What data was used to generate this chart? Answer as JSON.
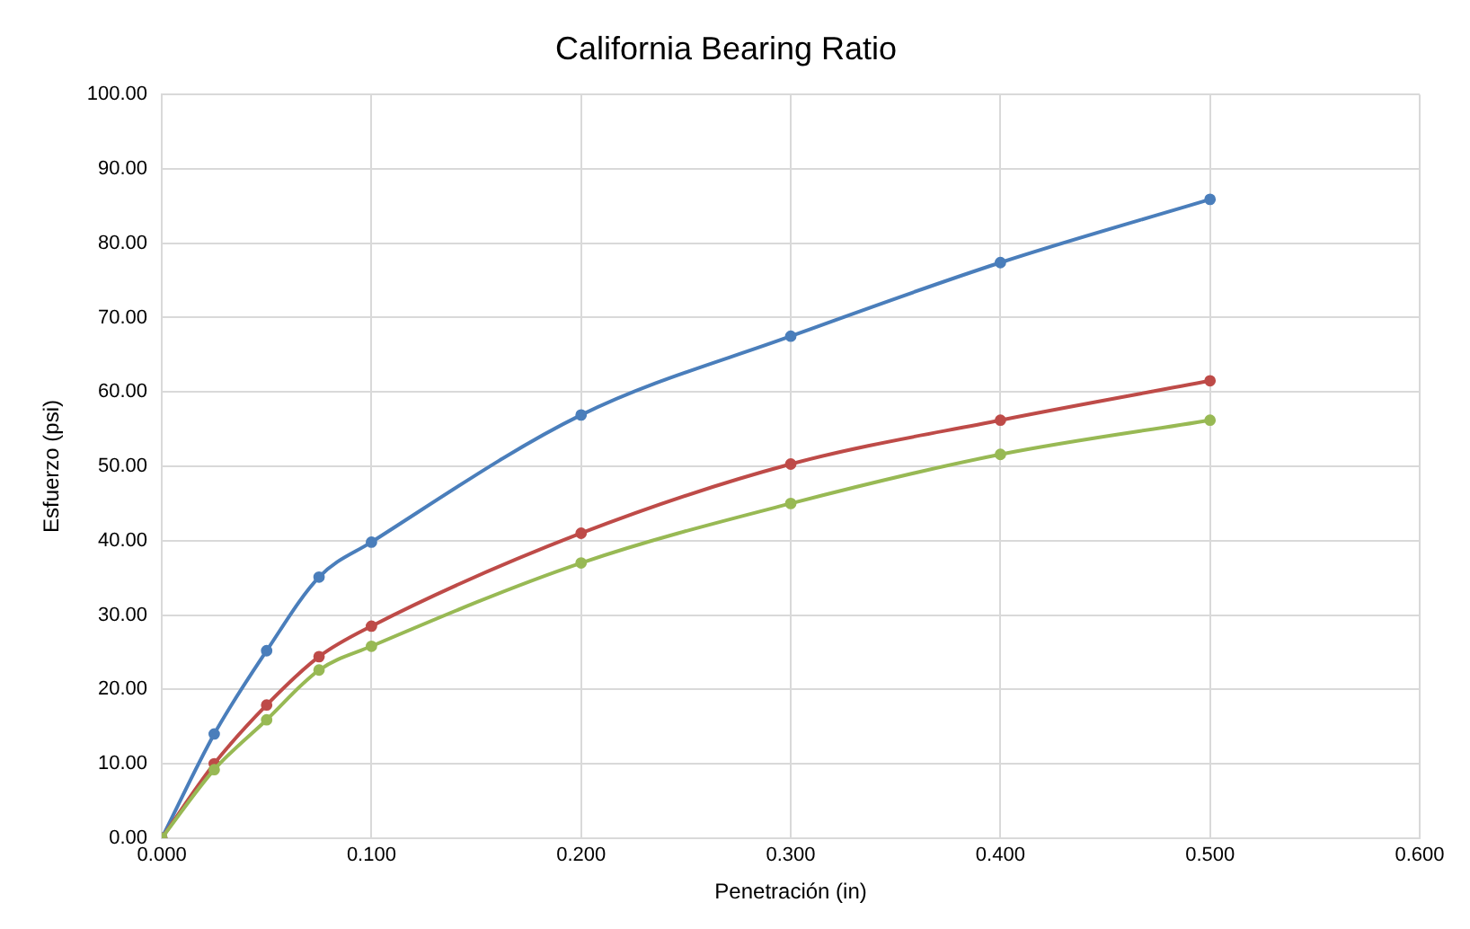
{
  "chart_data": {
    "type": "line",
    "title": "California Bearing Ratio",
    "xlabel": "Penetración (in)",
    "ylabel": "Esfuerzo (psi)",
    "x": [
      0,
      0.025,
      0.05,
      0.075,
      0.1,
      0.2,
      0.3,
      0.4,
      0.5
    ],
    "series": [
      {
        "color": "#4a7ebb",
        "values": [
          0,
          14,
          25.2,
          35.1,
          39.8,
          56.9,
          67.5,
          77.4,
          85.9
        ]
      },
      {
        "color": "#be4b48",
        "values": [
          0,
          10,
          17.9,
          24.4,
          28.5,
          41,
          50.3,
          56.2,
          61.5
        ]
      },
      {
        "color": "#98b954",
        "values": [
          0,
          9.2,
          15.9,
          22.6,
          25.8,
          37,
          45,
          51.6,
          56.2
        ]
      }
    ],
    "xlim": [
      0,
      0.6
    ],
    "xticks": [
      {
        "value": 0,
        "label": "0.000"
      },
      {
        "value": 0.1,
        "label": "0.100"
      },
      {
        "value": 0.2,
        "label": "0.200"
      },
      {
        "value": 0.3,
        "label": "0.300"
      },
      {
        "value": 0.4,
        "label": "0.400"
      },
      {
        "value": 0.5,
        "label": "0.500"
      },
      {
        "value": 0.6,
        "label": "0.600"
      }
    ],
    "ylim": [
      0,
      100
    ],
    "yticks": [
      {
        "value": 0,
        "label": "0.00"
      },
      {
        "value": 10,
        "label": "10.00"
      },
      {
        "value": 20,
        "label": "20.00"
      },
      {
        "value": 30,
        "label": "30.00"
      },
      {
        "value": 40,
        "label": "40.00"
      },
      {
        "value": 50,
        "label": "50.00"
      },
      {
        "value": 60,
        "label": "60.00"
      },
      {
        "value": 70,
        "label": "70.00"
      },
      {
        "value": 80,
        "label": "80.00"
      },
      {
        "value": 90,
        "label": "90.00"
      },
      {
        "value": 100,
        "label": "100.00"
      }
    ],
    "grid": true,
    "marker": "circle",
    "legend": false
  }
}
